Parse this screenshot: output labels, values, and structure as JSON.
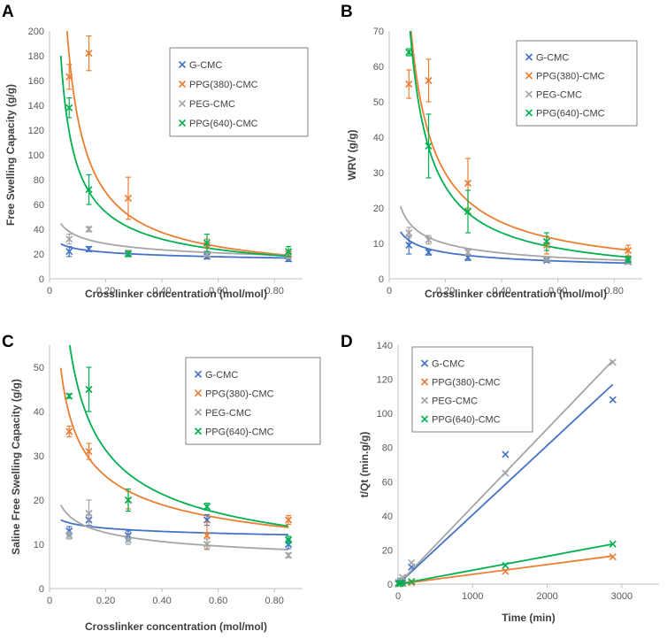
{
  "colors": {
    "G-CMC": "#4472c4",
    "PPG(380)-CMC": "#ed7d31",
    "PEG-CMC": "#a5a5a5",
    "PPG(640)-CMC": "#00b050"
  },
  "chart_data": [
    {
      "panel": "A",
      "type": "scatter",
      "xlabel": "Crosslinker concentration (mol/mol)",
      "ylabel": "Free Swelling Capacity (g/g)",
      "xlim": [
        0,
        0.9
      ],
      "ylim": [
        0,
        200
      ],
      "xticks": [
        0,
        0.2,
        0.4,
        0.6,
        0.8
      ],
      "xtick_labels": [
        "0",
        "0.20",
        "0.40",
        "0.60",
        "0.80"
      ],
      "yticks": [
        0,
        20,
        40,
        60,
        80,
        100,
        120,
        140,
        160,
        180,
        200
      ],
      "ytick_labels": [
        "0",
        "20",
        "40",
        "60",
        "80",
        "100",
        "120",
        "140",
        "160",
        "180",
        "200"
      ],
      "series": [
        {
          "name": "G-CMC",
          "x": [
            0.07,
            0.14,
            0.28,
            0.56,
            0.85
          ],
          "y": [
            22,
            24,
            20,
            18,
            16
          ],
          "err": [
            4,
            2,
            2,
            2,
            2
          ],
          "fit": {
            "a": 16.3,
            "b": -0.17
          }
        },
        {
          "name": "PPG(380)-CMC",
          "x": [
            0.07,
            0.14,
            0.28,
            0.56,
            0.85
          ],
          "y": [
            163,
            182,
            65,
            27,
            20
          ],
          "err": [
            10,
            14,
            17,
            5,
            3
          ],
          "fit": {
            "a": 16.4,
            "b": -0.9
          }
        },
        {
          "name": "PEG-CMC",
          "x": [
            0.07,
            0.14,
            0.28,
            0.56,
            0.85
          ],
          "y": [
            32,
            40,
            21,
            20,
            18
          ],
          "err": [
            4,
            2,
            2,
            2,
            2
          ],
          "fit": {
            "a": 18.1,
            "b": -0.28
          }
        },
        {
          "name": "PPG(640)-CMC",
          "x": [
            0.07,
            0.14,
            0.28,
            0.56,
            0.85
          ],
          "y": [
            138,
            72,
            20,
            29,
            22
          ],
          "err": [
            8,
            12,
            2,
            7,
            4
          ],
          "fit": {
            "a": 16.1,
            "b": -0.75
          }
        }
      ]
    },
    {
      "panel": "B",
      "type": "scatter",
      "xlabel": "Crosslinker concentration (mol/mol)",
      "ylabel": "WRV (g/g)",
      "xlim": [
        0,
        0.9
      ],
      "ylim": [
        0,
        70
      ],
      "xticks": [
        0,
        0.2,
        0.4,
        0.6,
        0.8
      ],
      "xtick_labels": [
        "0",
        "0.20",
        "0.40",
        "0.60",
        "0.80"
      ],
      "yticks": [
        0,
        10,
        20,
        30,
        40,
        50,
        60,
        70
      ],
      "ytick_labels": [
        "0",
        "10",
        "20",
        "30",
        "40",
        "50",
        "60",
        "70"
      ],
      "series": [
        {
          "name": "G-CMC",
          "x": [
            0.07,
            0.14,
            0.28,
            0.56,
            0.85
          ],
          "y": [
            9.5,
            7.5,
            6,
            5.2,
            4.8
          ],
          "err": [
            2.5,
            0.8,
            0.8,
            0.5,
            0.5
          ],
          "fit": {
            "a": 4.17,
            "b": -0.36
          }
        },
        {
          "name": "PPG(380)-CMC",
          "x": [
            0.07,
            0.14,
            0.28,
            0.56,
            0.85
          ],
          "y": [
            55,
            56,
            27,
            9.5,
            8
          ],
          "err": [
            4,
            6,
            7,
            2.5,
            1.5
          ],
          "fit": {
            "a": 7,
            "b": -0.9
          }
        },
        {
          "name": "PEG-CMC",
          "x": [
            0.07,
            0.14,
            0.28,
            0.56,
            0.85
          ],
          "y": [
            13,
            11,
            7.5,
            5.5,
            5
          ],
          "err": [
            1.5,
            1.2,
            0.8,
            0.5,
            0.5
          ],
          "fit": {
            "a": 4.82,
            "b": -0.45
          }
        },
        {
          "name": "PPG(640)-CMC",
          "x": [
            0.07,
            0.14,
            0.28,
            0.56,
            0.85
          ],
          "y": [
            64,
            37.5,
            19,
            10.5,
            5.5
          ],
          "err": [
            1,
            9,
            6,
            2.5,
            0.8
          ],
          "fit": {
            "a": 5.2,
            "b": -1.0
          }
        }
      ]
    },
    {
      "panel": "C",
      "type": "scatter",
      "xlabel": "Crosslinker concentration (mol/mol)",
      "ylabel": "Saline Free Swelling Capacity (g/g)",
      "xlim": [
        0,
        0.9
      ],
      "ylim": [
        0,
        55
      ],
      "xticks": [
        0,
        0.2,
        0.4,
        0.6,
        0.8
      ],
      "xtick_labels": [
        "0",
        "0.20",
        "0.40",
        "0.60",
        "0.80"
      ],
      "yticks": [
        0,
        10,
        20,
        30,
        40,
        50
      ],
      "ytick_labels": [
        "0",
        "10",
        "20",
        "30",
        "40",
        "50"
      ],
      "series": [
        {
          "name": "G-CMC",
          "x": [
            0.07,
            0.14,
            0.28,
            0.56,
            0.85
          ],
          "y": [
            13,
            15.5,
            12,
            15.5,
            10
          ],
          "err": [
            1,
            1.2,
            1,
            1.2,
            1
          ],
          "fit": {
            "a": 12.0,
            "b": -0.08
          }
        },
        {
          "name": "PPG(380)-CMC",
          "x": [
            0.07,
            0.14,
            0.28,
            0.56,
            0.85
          ],
          "y": [
            35.5,
            31,
            20,
            12,
            15.5
          ],
          "err": [
            1.2,
            1.8,
            2,
            3,
            1
          ],
          "fit": {
            "a": 12.9,
            "b": -0.42
          }
        },
        {
          "name": "PEG-CMC",
          "x": [
            0.07,
            0.14,
            0.28,
            0.56,
            0.85
          ],
          "y": [
            12,
            17,
            11,
            10,
            7.5
          ],
          "err": [
            0.8,
            3,
            1,
            1.2,
            0.5
          ],
          "fit": {
            "a": 8.45,
            "b": -0.25
          }
        },
        {
          "name": "PPG(640)-CMC",
          "x": [
            0.07,
            0.14,
            0.28,
            0.56,
            0.85
          ],
          "y": [
            43.5,
            45,
            20,
            18.5,
            11
          ],
          "err": [
            0.5,
            5,
            2.5,
            0.8,
            0.8
          ],
          "fit": {
            "a": 12.9,
            "b": -0.55
          }
        }
      ]
    },
    {
      "panel": "D",
      "type": "scatter",
      "xlabel": "Time (min)",
      "ylabel": "t/Qt (min.g/g)",
      "xlim": [
        0,
        3500
      ],
      "ylim": [
        0,
        140
      ],
      "xticks": [
        0,
        1000,
        2000,
        3000
      ],
      "xtick_labels": [
        "0",
        "1000",
        "2000",
        "3000"
      ],
      "yticks": [
        0,
        20,
        40,
        60,
        80,
        100,
        120,
        140
      ],
      "ytick_labels": [
        "0",
        "20",
        "40",
        "60",
        "80",
        "100",
        "120",
        "140"
      ],
      "series": [
        {
          "name": "G-CMC",
          "x": [
            5,
            30,
            60,
            180,
            1440,
            2880
          ],
          "y": [
            0.5,
            1,
            2,
            10,
            76,
            108
          ],
          "fitline": {
            "x": [
              0,
              2880
            ],
            "y": [
              0,
              117
            ]
          }
        },
        {
          "name": "PPG(380)-CMC",
          "x": [
            5,
            30,
            60,
            180,
            1440,
            2880
          ],
          "y": [
            0.1,
            0.3,
            0.5,
            0.8,
            7.5,
            16
          ],
          "fitline": {
            "x": [
              0,
              2880
            ],
            "y": [
              0,
              16.5
            ]
          }
        },
        {
          "name": "PEG-CMC",
          "x": [
            5,
            30,
            60,
            180,
            1440,
            2880
          ],
          "y": [
            1,
            2,
            4,
            12.5,
            65,
            130
          ],
          "fitline": {
            "x": [
              0,
              2880
            ],
            "y": [
              0,
              131
            ]
          }
        },
        {
          "name": "PPG(640)-CMC",
          "x": [
            5,
            30,
            60,
            180,
            1440,
            2880
          ],
          "y": [
            0.2,
            0.4,
            0.6,
            1.5,
            11,
            23.5
          ],
          "fitline": {
            "x": [
              0,
              2880
            ],
            "y": [
              0,
              23.5
            ]
          }
        }
      ]
    }
  ]
}
